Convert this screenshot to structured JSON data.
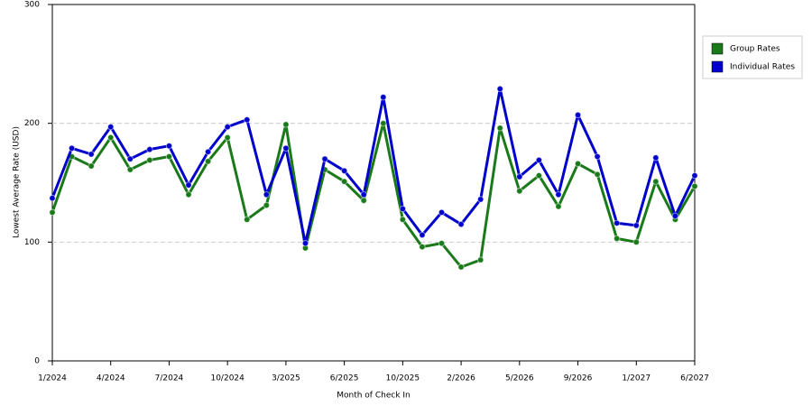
{
  "chart_data": {
    "type": "line",
    "x_label": "Month of Check In",
    "y_label": "Lowest Average Rate (USD)",
    "categories": [
      "1/2024",
      null,
      null,
      "4/2024",
      null,
      null,
      "7/2024",
      null,
      null,
      "10/2024",
      null,
      null,
      "3/2025",
      null,
      null,
      "6/2025",
      null,
      null,
      "10/2025",
      null,
      null,
      "2/2026",
      null,
      null,
      "5/2026",
      null,
      null,
      "9/2026",
      null,
      null,
      "1/2027",
      null,
      null,
      "6/2027"
    ],
    "series": [
      {
        "name": "Group Rates",
        "color": "#1a7a1a",
        "values": [
          125,
          172,
          164,
          188,
          161,
          169,
          172,
          140,
          168,
          188,
          119,
          131,
          199,
          95,
          161,
          151,
          135,
          200,
          119,
          96,
          99,
          79,
          85,
          196,
          143,
          156,
          130,
          166,
          157,
          103,
          100,
          151,
          119,
          147
        ]
      },
      {
        "name": "Individual Rates",
        "color": "#0000cc",
        "values": [
          137,
          179,
          174,
          197,
          170,
          178,
          181,
          148,
          176,
          197,
          203,
          140,
          179,
          99,
          170,
          160,
          140,
          222,
          128,
          106,
          125,
          115,
          136,
          229,
          155,
          169,
          140,
          207,
          172,
          116,
          114,
          171,
          122,
          156
        ]
      }
    ],
    "ylim": [
      0,
      300
    ],
    "yticks": [
      0,
      100,
      200,
      300
    ],
    "grid": true,
    "legend": "right"
  }
}
